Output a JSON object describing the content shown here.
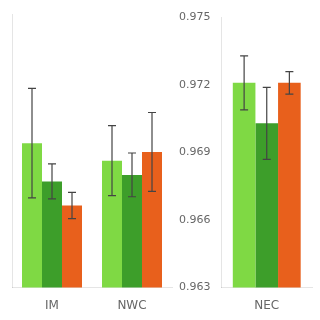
{
  "chart_data": [
    {
      "type": "bar",
      "categories": [
        "IM",
        "NWC"
      ],
      "series": [
        {
          "color": "#7FD944",
          "values": [
            0.156,
            0.148
          ],
          "errors": [
            0.025,
            0.016
          ]
        },
        {
          "color": "#3D9E2A",
          "values": [
            0.1385,
            0.1415
          ],
          "errors": [
            0.008,
            0.01
          ]
        },
        {
          "color": "#E8601C",
          "values": [
            0.1275,
            0.152
          ],
          "errors": [
            0.006,
            0.018
          ]
        }
      ],
      "ylim": [
        0.09,
        0.215
      ],
      "grid": false,
      "tick_labels": "x"
    },
    {
      "type": "bar",
      "categories": [
        "NEC"
      ],
      "series": [
        {
          "color": "#7FD944",
          "values": [
            0.9721
          ],
          "errors": [
            0.0012
          ]
        },
        {
          "color": "#3D9E2A",
          "values": [
            0.9703
          ],
          "errors": [
            0.0016
          ]
        },
        {
          "color": "#E8601C",
          "values": [
            0.9721
          ],
          "errors": [
            0.0005
          ]
        }
      ],
      "ylim": [
        0.963,
        0.975
      ],
      "yticks": [
        0.963,
        0.966,
        0.969,
        0.972,
        0.975
      ],
      "grid": false
    }
  ]
}
